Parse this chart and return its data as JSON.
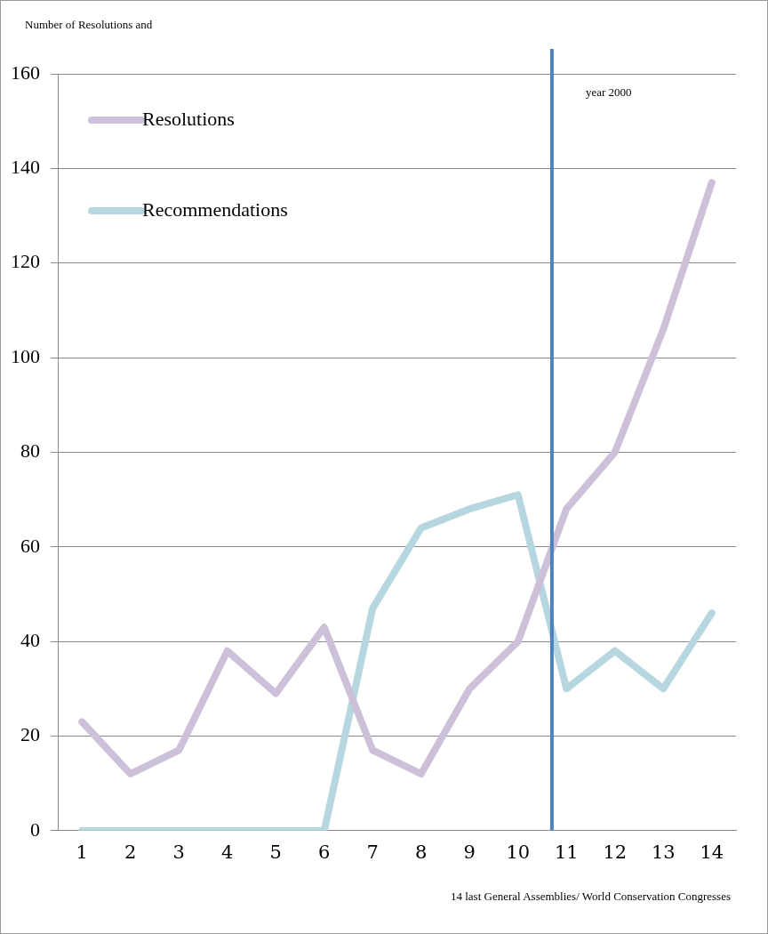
{
  "chart_data": {
    "type": "line",
    "ylabel": "Number of Resolutions and",
    "xlabel": "14 last General Assemblies/ World Conservation Congresses",
    "x": [
      1,
      2,
      3,
      4,
      5,
      6,
      7,
      8,
      9,
      10,
      11,
      12,
      13,
      14
    ],
    "xlim": [
      0.5,
      14.5
    ],
    "xticks": [
      1,
      2,
      3,
      4,
      5,
      6,
      7,
      8,
      9,
      10,
      11,
      12,
      13,
      14
    ],
    "ylim": [
      0,
      160
    ],
    "yticks": [
      0,
      20,
      40,
      60,
      80,
      100,
      120,
      140,
      160
    ],
    "grid": "y",
    "legend": "top left",
    "marker": "none",
    "line_style": "solid",
    "series": [
      {
        "name": "Resolutions",
        "color": "#ccc1d9",
        "values": [
          23,
          12,
          17,
          38,
          29,
          43,
          17,
          12,
          30,
          40,
          68,
          80,
          106,
          137
        ]
      },
      {
        "name": "Recommendations",
        "color": "#b7d7e0",
        "values": [
          0,
          0,
          0,
          0,
          0,
          0,
          47,
          64,
          68,
          71,
          30,
          38,
          30,
          46
        ]
      }
    ],
    "ref_lines": [
      {
        "axis": "x",
        "value": 10.7,
        "label": "year 2000",
        "color": "#4f81bd",
        "line_style": "solid"
      }
    ]
  }
}
